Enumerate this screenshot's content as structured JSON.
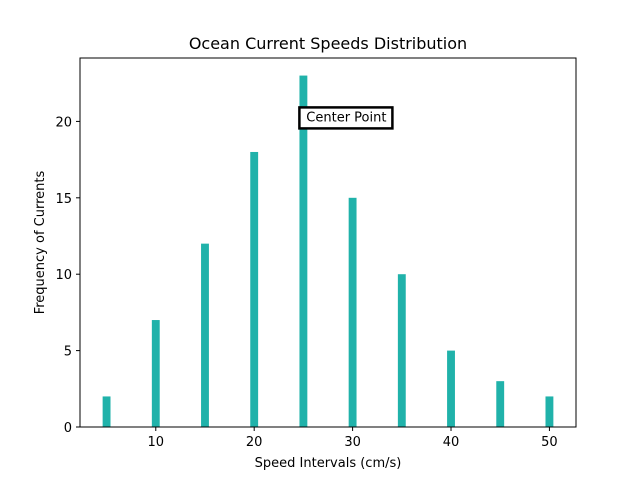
{
  "chart_data": {
    "type": "bar",
    "title": "Ocean Current Speeds Distribution",
    "xlabel": "Speed Intervals (cm/s)",
    "ylabel": "Frequency of Currents",
    "x": [
      5,
      10,
      15,
      20,
      25,
      30,
      35,
      40,
      45,
      50
    ],
    "values": [
      2,
      7,
      12,
      18,
      23,
      15,
      10,
      5,
      3,
      2
    ],
    "xlim": [
      2.3,
      52.7
    ],
    "ylim": [
      0,
      24.15
    ],
    "xticks": [
      10,
      20,
      30,
      40,
      50
    ],
    "yticks": [
      0,
      5,
      10,
      15,
      20
    ],
    "bar_width": 0.8,
    "bar_color": "#20b2aa",
    "grid": false,
    "annotation": {
      "text": "Center Point",
      "x": 25,
      "y": 20
    }
  }
}
